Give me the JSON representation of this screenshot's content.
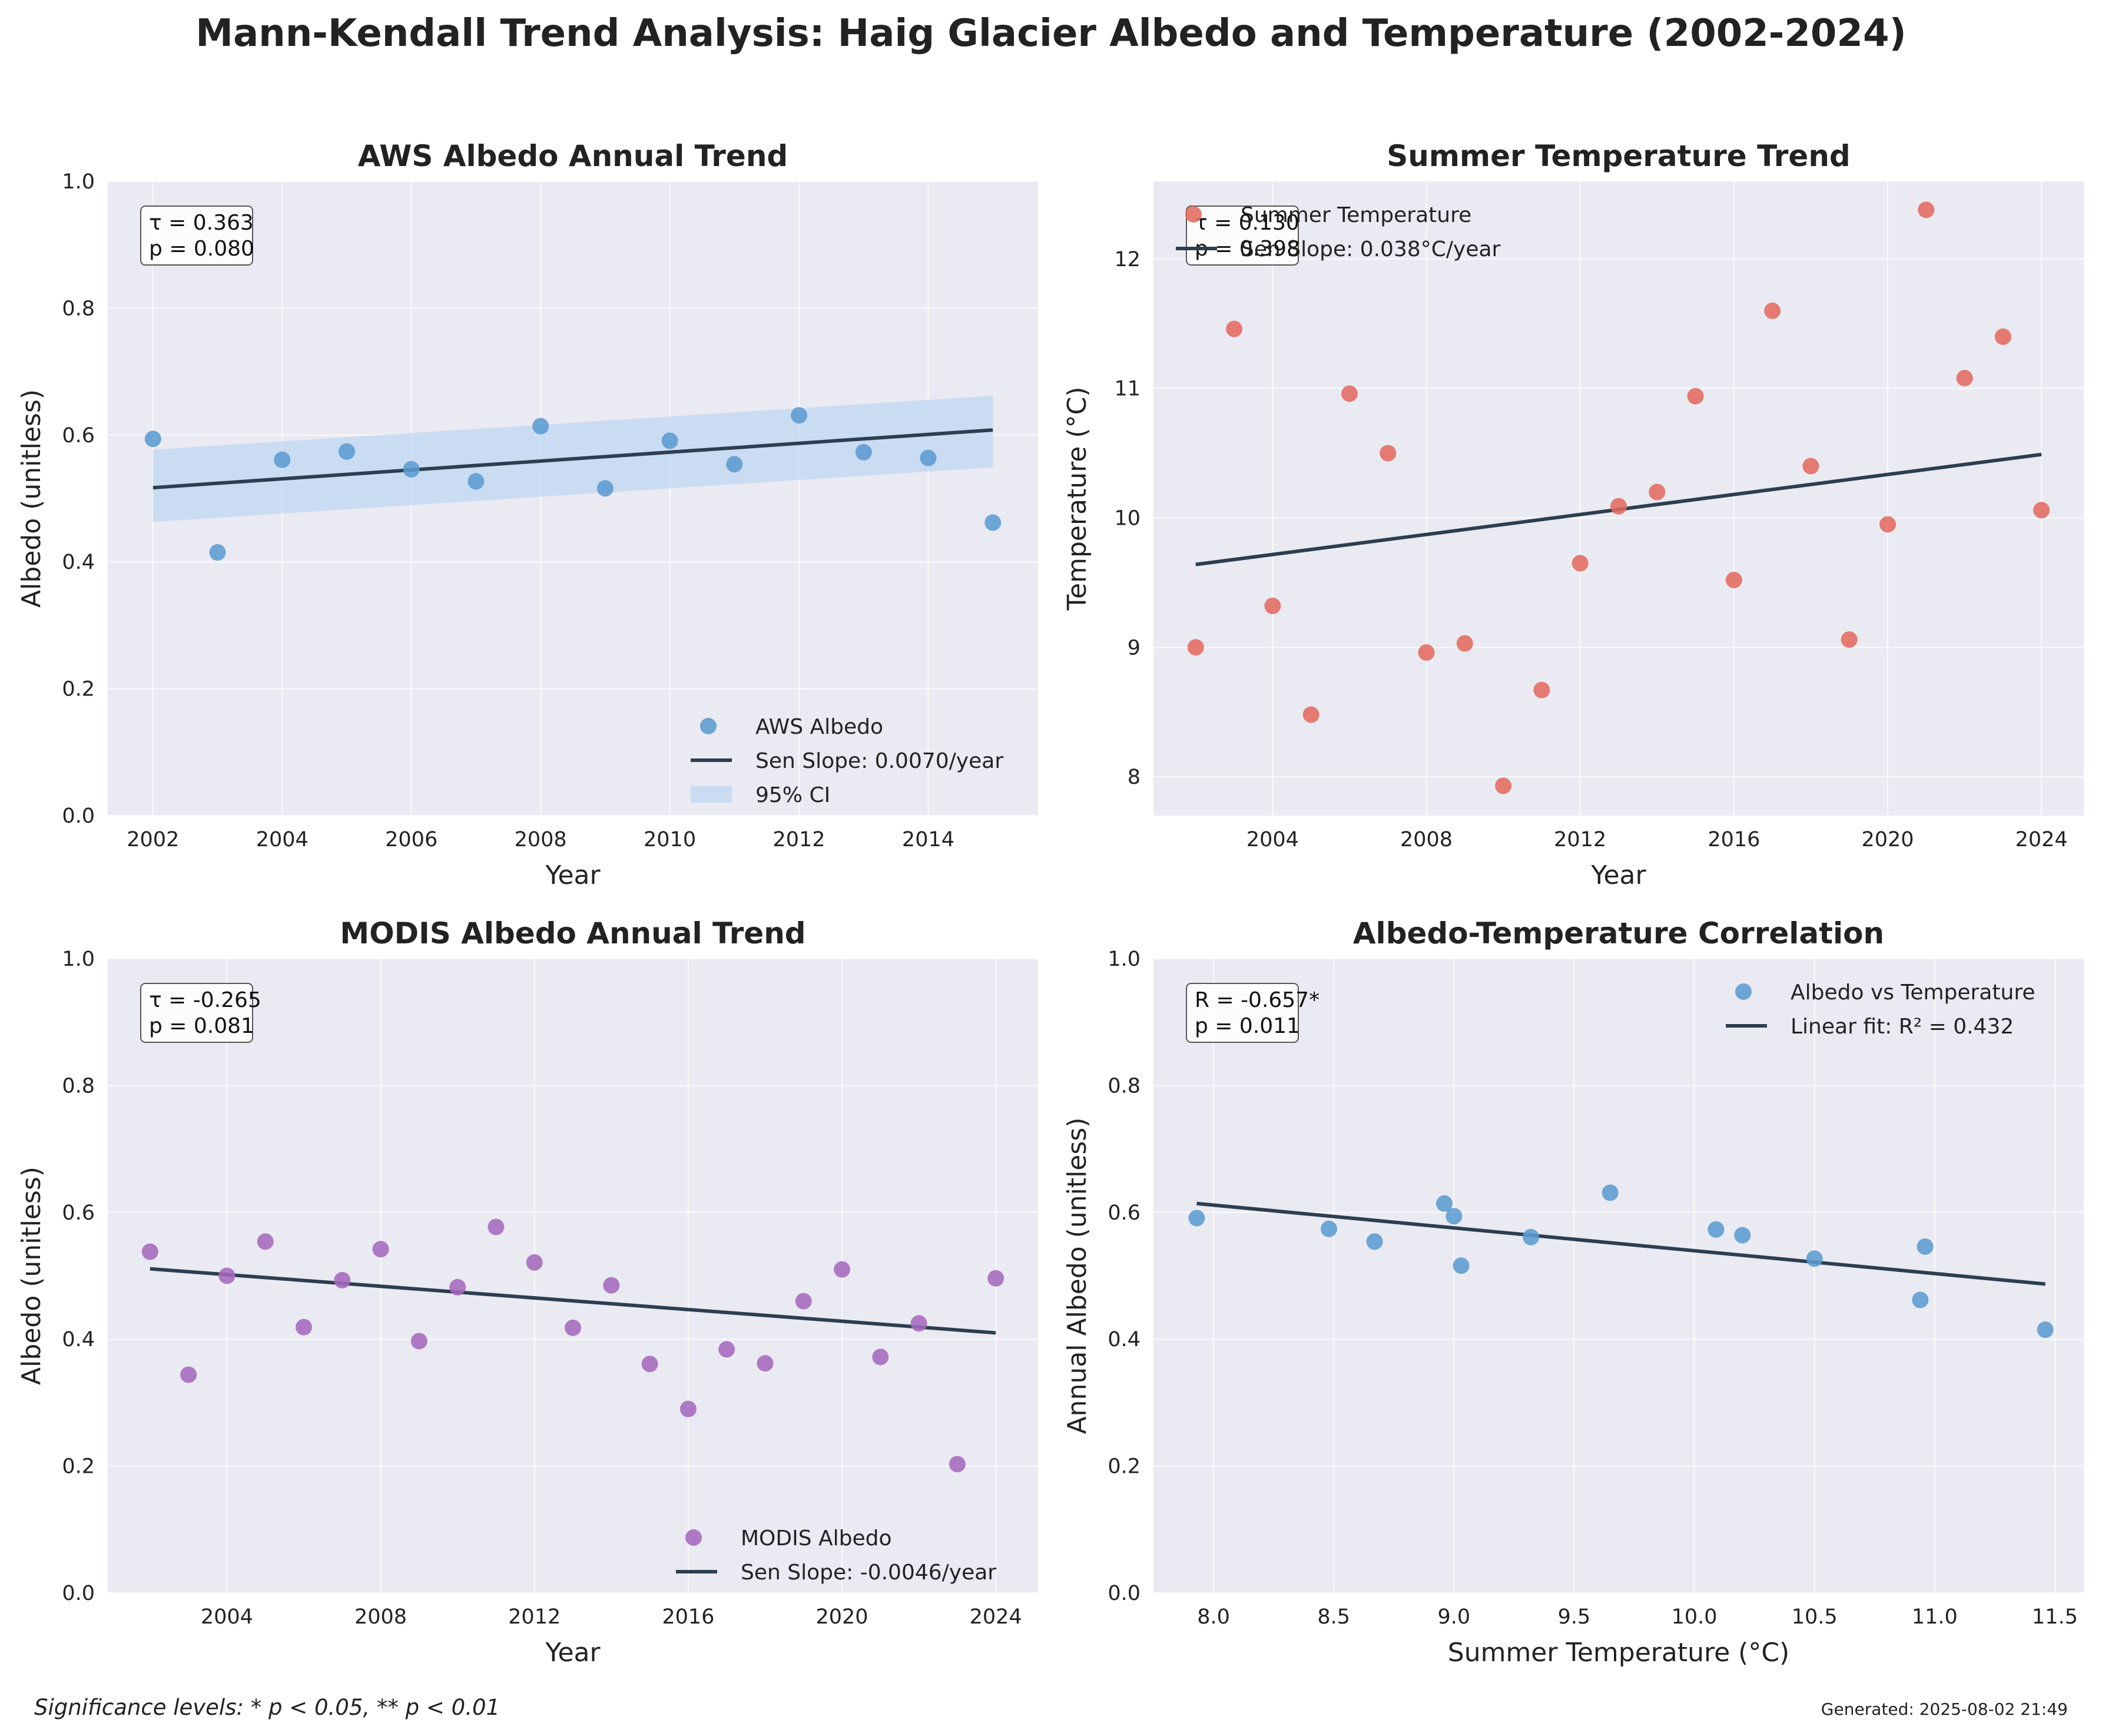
{
  "figure": {
    "title": "Mann-Kendall Trend Analysis: Haig Glacier Albedo and Temperature (2002-2024)",
    "footnote": "Significance levels: * p < 0.05, ** p < 0.01",
    "generated": "Generated: 2025-08-02 21:49"
  },
  "colors": {
    "axes_bg": "#EAEAF2",
    "grid": "#FFFFFF",
    "aws": "#5B9BD0",
    "temperature": "#E26A5F",
    "modis": "#A569BD",
    "trend_line": "#2C3E50",
    "ci_fill": "#BFD7F0"
  },
  "chart_data": [
    {
      "id": "aws",
      "type": "scatter",
      "title": "AWS Albedo Annual Trend",
      "xlabel": "Year",
      "ylabel": "Albedo (unitless)",
      "xlim": [
        2001.3,
        2015.7
      ],
      "ylim": [
        0,
        1.0
      ],
      "xticks": [
        2002,
        2004,
        2006,
        2008,
        2010,
        2012,
        2014
      ],
      "yticks": [
        0.0,
        0.2,
        0.4,
        0.6,
        0.8,
        1.0
      ],
      "ytick_labels": [
        "0.0",
        "0.2",
        "0.4",
        "0.6",
        "0.8",
        "1.0"
      ],
      "grid": true,
      "color": "#5B9BD0",
      "series": [
        {
          "name": "AWS Albedo",
          "x": [
            2002,
            2003,
            2004,
            2005,
            2006,
            2007,
            2008,
            2009,
            2010,
            2011,
            2012,
            2013,
            2014,
            2015
          ],
          "y": [
            0.594,
            0.415,
            0.561,
            0.574,
            0.546,
            0.527,
            0.614,
            0.516,
            0.591,
            0.554,
            0.631,
            0.573,
            0.564,
            0.462
          ]
        }
      ],
      "trend": {
        "name": "Sen Slope: 0.0070/year",
        "x": [
          2002,
          2015
        ],
        "y": [
          0.517,
          0.608
        ]
      },
      "ci": {
        "name": "95% CI",
        "x": [
          2002,
          2015
        ],
        "lower": [
          0.463,
          0.549
        ],
        "upper": [
          0.577,
          0.662
        ]
      },
      "stats": [
        "τ = 0.363",
        "p = 0.080"
      ],
      "legend_loc": "lower right"
    },
    {
      "id": "temp",
      "type": "scatter",
      "title": "Summer Temperature Trend",
      "xlabel": "Year",
      "ylabel": "Temperature (°C)",
      "xlim": [
        2000.9,
        2025.1
      ],
      "ylim": [
        7.7,
        12.6
      ],
      "xticks": [
        2004,
        2008,
        2012,
        2016,
        2020,
        2024
      ],
      "yticks": [
        8,
        9,
        10,
        11,
        12
      ],
      "ytick_labels": [
        "8",
        "9",
        "10",
        "11",
        "12"
      ],
      "grid": true,
      "color": "#E26A5F",
      "series": [
        {
          "name": "Summer Temperature",
          "x": [
            2002,
            2003,
            2004,
            2005,
            2006,
            2007,
            2008,
            2009,
            2010,
            2011,
            2012,
            2013,
            2014,
            2015,
            2016,
            2017,
            2018,
            2019,
            2020,
            2021,
            2022,
            2023,
            2024
          ],
          "y": [
            9.0,
            11.46,
            9.32,
            8.48,
            10.96,
            10.5,
            8.96,
            9.03,
            7.93,
            8.67,
            9.65,
            10.09,
            10.2,
            10.94,
            9.52,
            11.6,
            10.4,
            9.06,
            9.95,
            12.38,
            11.08,
            11.4,
            10.06
          ]
        }
      ],
      "trend": {
        "name": "Sen Slope: 0.038°C/year",
        "x": [
          2002,
          2024
        ],
        "y": [
          9.64,
          10.49
        ]
      },
      "stats": [
        "τ = 0.130",
        "p = 0.398"
      ],
      "legend_loc": "upper left"
    },
    {
      "id": "modis",
      "type": "scatter",
      "title": "MODIS Albedo Annual Trend",
      "xlabel": "Year",
      "ylabel": "Albedo (unitless)",
      "xlim": [
        2000.9,
        2025.1
      ],
      "ylim": [
        0,
        1.0
      ],
      "xticks": [
        2004,
        2008,
        2012,
        2016,
        2020,
        2024
      ],
      "yticks": [
        0.0,
        0.2,
        0.4,
        0.6,
        0.8,
        1.0
      ],
      "ytick_labels": [
        "0.0",
        "0.2",
        "0.4",
        "0.6",
        "0.8",
        "1.0"
      ],
      "grid": true,
      "color": "#A569BD",
      "series": [
        {
          "name": "MODIS Albedo",
          "x": [
            2002,
            2003,
            2004,
            2005,
            2006,
            2007,
            2008,
            2009,
            2010,
            2011,
            2012,
            2013,
            2014,
            2015,
            2016,
            2017,
            2018,
            2019,
            2020,
            2021,
            2022,
            2023,
            2024
          ],
          "y": [
            0.538,
            0.344,
            0.5,
            0.554,
            0.419,
            0.493,
            0.542,
            0.397,
            0.482,
            0.577,
            0.521,
            0.418,
            0.485,
            0.361,
            0.29,
            0.384,
            0.362,
            0.46,
            0.51,
            0.372,
            0.425,
            0.203,
            0.496
          ]
        }
      ],
      "trend": {
        "name": "Sen Slope: -0.0046/year",
        "x": [
          2002,
          2024
        ],
        "y": [
          0.511,
          0.41
        ]
      },
      "stats": [
        "τ = -0.265",
        "p = 0.081"
      ],
      "legend_loc": "lower right"
    },
    {
      "id": "corr",
      "type": "scatter",
      "title": "Albedo-Temperature Correlation",
      "xlabel": "Summer Temperature (°C)",
      "ylabel": "Annual Albedo (unitless)",
      "xlim": [
        7.75,
        11.62
      ],
      "ylim": [
        0,
        1.0
      ],
      "xticks": [
        8.0,
        8.5,
        9.0,
        9.5,
        10.0,
        10.5,
        11.0,
        11.5
      ],
      "xtick_labels": [
        "8.0",
        "8.5",
        "9.0",
        "9.5",
        "10.0",
        "10.5",
        "11.0",
        "11.5"
      ],
      "yticks": [
        0.0,
        0.2,
        0.4,
        0.6,
        0.8,
        1.0
      ],
      "ytick_labels": [
        "0.0",
        "0.2",
        "0.4",
        "0.6",
        "0.8",
        "1.0"
      ],
      "grid": true,
      "color": "#5B9BD0",
      "series": [
        {
          "name": "Albedo vs Temperature",
          "x": [
            7.93,
            8.48,
            8.67,
            8.96,
            9.0,
            9.03,
            9.32,
            9.65,
            10.09,
            10.2,
            10.5,
            10.94,
            10.96,
            11.46
          ],
          "y": [
            0.591,
            0.574,
            0.554,
            0.614,
            0.594,
            0.516,
            0.561,
            0.631,
            0.573,
            0.564,
            0.527,
            0.462,
            0.546,
            0.415
          ]
        }
      ],
      "trend": {
        "name": "Linear fit: R² = 0.432",
        "x": [
          7.93,
          11.46
        ],
        "y": [
          0.614,
          0.487
        ]
      },
      "stats": [
        "R = -0.657*",
        "p = 0.011"
      ],
      "legend_loc": "upper right"
    }
  ]
}
